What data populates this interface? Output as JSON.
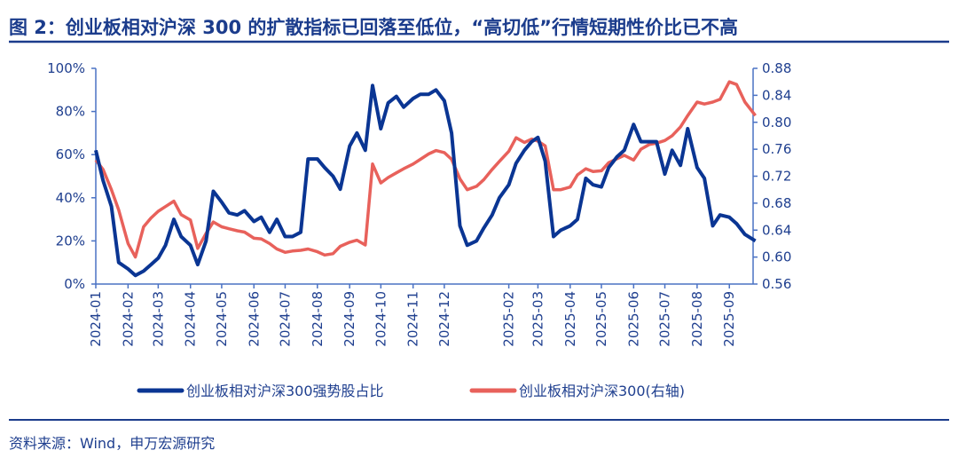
{
  "title": "图 2：创业板相对沪深 300 的扩散指标已回落至低位，“高切低”行情短期性价比已不高",
  "source": "资料来源：Wind，申万宏源研究",
  "colors": {
    "title": "#1b3c8c",
    "series_left": "#0a3593",
    "series_right": "#e8615b",
    "axis": "#4a72c4"
  },
  "chart_data": {
    "type": "line",
    "title": "",
    "xlabel": "",
    "ylabel": "",
    "y_left": {
      "range": [
        0,
        100
      ],
      "ticks": [
        "0%",
        "20%",
        "40%",
        "60%",
        "80%",
        "100%"
      ],
      "unit": "%"
    },
    "y_right": {
      "range": [
        0.56,
        0.88
      ],
      "ticks": [
        "0.56",
        "0.60",
        "0.64",
        "0.68",
        "0.72",
        "0.76",
        "0.80",
        "0.84",
        "0.88"
      ]
    },
    "x_ticks": [
      "2024-01",
      "2024-02",
      "2024-03",
      "2024-04",
      "2024-05",
      "2024-06",
      "2024-07",
      "2024-08",
      "2024-09",
      "2024-10",
      "2024-11",
      "2024-12",
      "2025-02",
      "2025-03",
      "2025-04",
      "2025-05",
      "2025-06",
      "2025-07",
      "2025-08",
      "2025-09"
    ],
    "x_tick_dates": [
      "2024-01-01",
      "2024-02-01",
      "2024-03-01",
      "2024-04-01",
      "2024-05-01",
      "2024-06-01",
      "2024-07-01",
      "2024-08-01",
      "2024-09-01",
      "2024-10-01",
      "2024-11-01",
      "2024-12-01",
      "2025-02-01",
      "2025-03-01",
      "2025-04-01",
      "2025-05-01",
      "2025-06-01",
      "2025-07-01",
      "2025-08-01",
      "2025-09-01"
    ],
    "grid": false,
    "legend": "bottom",
    "x": [
      "2024-01-01",
      "2024-01-08",
      "2024-01-16",
      "2024-01-23",
      "2024-02-01",
      "2024-02-08",
      "2024-02-16",
      "2024-02-23",
      "2024-03-01",
      "2024-03-08",
      "2024-03-16",
      "2024-03-23",
      "2024-04-01",
      "2024-04-08",
      "2024-04-16",
      "2024-04-23",
      "2024-05-01",
      "2024-05-08",
      "2024-05-16",
      "2024-05-23",
      "2024-06-01",
      "2024-06-08",
      "2024-06-16",
      "2024-06-23",
      "2024-07-01",
      "2024-07-08",
      "2024-07-16",
      "2024-07-23",
      "2024-08-01",
      "2024-08-08",
      "2024-08-16",
      "2024-08-23",
      "2024-09-01",
      "2024-09-08",
      "2024-09-16",
      "2024-09-23",
      "2024-10-01",
      "2024-10-08",
      "2024-10-16",
      "2024-10-23",
      "2024-11-01",
      "2024-11-08",
      "2024-11-16",
      "2024-11-23",
      "2024-12-01",
      "2024-12-08",
      "2024-12-16",
      "2024-12-23",
      "2025-01-01",
      "2025-01-08",
      "2025-01-16",
      "2025-01-23",
      "2025-02-01",
      "2025-02-08",
      "2025-02-16",
      "2025-02-23",
      "2025-03-01",
      "2025-03-08",
      "2025-03-16",
      "2025-03-23",
      "2025-04-01",
      "2025-04-08",
      "2025-04-16",
      "2025-04-23",
      "2025-05-01",
      "2025-05-08",
      "2025-05-16",
      "2025-05-23",
      "2025-06-01",
      "2025-06-08",
      "2025-06-16",
      "2025-06-23",
      "2025-07-01",
      "2025-07-08",
      "2025-07-16",
      "2025-07-23",
      "2025-08-01",
      "2025-08-08",
      "2025-08-16",
      "2025-08-23",
      "2025-09-01",
      "2025-09-08",
      "2025-09-16",
      "2025-09-26"
    ],
    "series": [
      {
        "name": "创业板相对沪深300强势股占比",
        "axis": "left",
        "values": [
          62,
          48,
          36,
          10,
          7,
          4,
          6,
          9,
          12,
          18,
          30,
          22,
          18,
          9,
          20,
          43,
          38,
          33,
          32,
          34,
          29,
          31,
          24,
          30,
          22,
          22,
          24,
          58,
          58,
          54,
          50,
          44,
          64,
          70,
          62,
          92,
          72,
          84,
          87,
          82,
          86,
          88,
          88,
          90,
          85,
          70,
          27,
          18,
          20,
          26,
          32,
          40,
          46,
          56,
          62,
          66,
          68,
          57,
          22,
          25,
          27,
          30,
          49,
          46,
          45,
          54,
          59,
          62,
          74,
          66,
          66,
          66,
          51,
          62,
          55,
          72,
          54,
          49,
          27,
          32,
          31,
          28,
          23,
          20
        ]
      },
      {
        "name": "创业板相对沪深300(右轴)",
        "axis": "right",
        "values": [
          0.744,
          0.73,
          0.7,
          0.67,
          0.62,
          0.6,
          0.645,
          0.658,
          0.668,
          0.675,
          0.683,
          0.663,
          0.655,
          0.613,
          0.635,
          0.652,
          0.645,
          0.642,
          0.639,
          0.637,
          0.628,
          0.627,
          0.62,
          0.612,
          0.607,
          0.609,
          0.61,
          0.612,
          0.608,
          0.603,
          0.605,
          0.616,
          0.622,
          0.625,
          0.618,
          0.738,
          0.71,
          0.718,
          0.725,
          0.731,
          0.738,
          0.745,
          0.753,
          0.758,
          0.755,
          0.745,
          0.716,
          0.7,
          0.705,
          0.715,
          0.73,
          0.742,
          0.757,
          0.777,
          0.77,
          0.775,
          0.772,
          0.765,
          0.7,
          0.7,
          0.704,
          0.722,
          0.731,
          0.727,
          0.728,
          0.74,
          0.746,
          0.751,
          0.744,
          0.76,
          0.767,
          0.769,
          0.773,
          0.78,
          0.793,
          0.81,
          0.83,
          0.827,
          0.83,
          0.834,
          0.86,
          0.856,
          0.83,
          0.81
        ]
      }
    ]
  }
}
